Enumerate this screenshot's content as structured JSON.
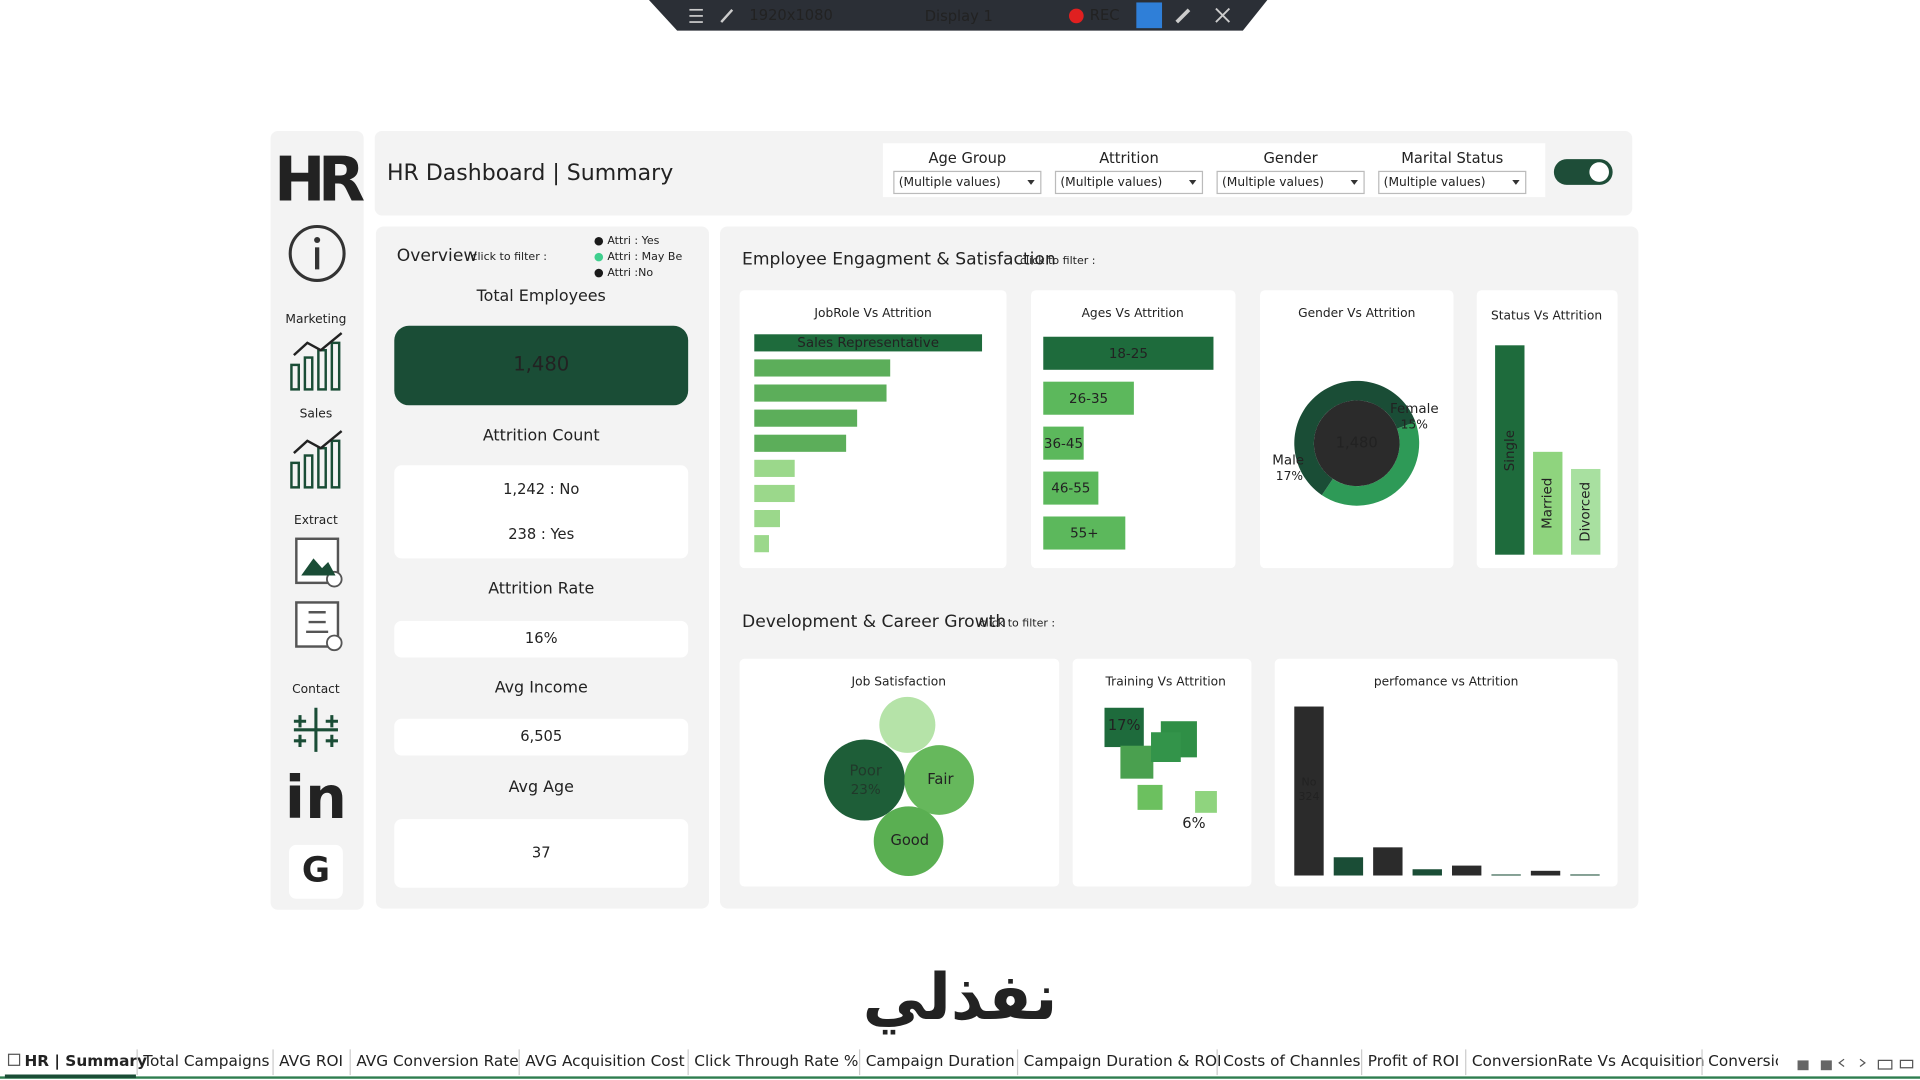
{
  "recorder": {
    "resolution": "1920x1080",
    "display": "Display 1",
    "rec": "REC"
  },
  "sidebar": {
    "logo": "HR",
    "sections": [
      "Marketing",
      "Sales",
      "Extract",
      "Contact"
    ],
    "linkedin": "in",
    "google": "G"
  },
  "header": {
    "title": "HR Dashboard | Summary",
    "filters": [
      {
        "label": "Age Group",
        "value": "(Multiple values)"
      },
      {
        "label": "Attrition",
        "value": "(Multiple values)"
      },
      {
        "label": "Gender",
        "value": "(Multiple values)"
      },
      {
        "label": "Marital Status",
        "value": "(Multiple values)"
      }
    ]
  },
  "overview": {
    "title": "Overview",
    "hint": "click to filter :",
    "legend": [
      {
        "label": "Attri : Yes",
        "color": "#1a1a1a"
      },
      {
        "label": "Attri : May Be",
        "color": "#3fcf8e"
      },
      {
        "label": "Attri :No",
        "color": "#1a1a1a"
      }
    ],
    "total_label": "Total Employees",
    "total": "1,480",
    "count_label": "Attrition Count",
    "count_no": "1,242 : No",
    "count_yes": "238 : Yes",
    "rate_label": "Attrition Rate",
    "rate": "16%",
    "income_label": "Avg Income",
    "income": "6,505",
    "age_label": "Avg Age",
    "age": "37"
  },
  "engagement": {
    "title": "Employee Engagment & Satisfaction",
    "hint": "click to filter :",
    "jobrole": {
      "type": "bar",
      "title": "JobRole Vs Attrition",
      "categories": [
        "Sales Representative",
        null,
        null,
        null,
        null,
        null,
        null,
        null,
        null
      ],
      "values": [
        62,
        37,
        36,
        28,
        25,
        11,
        11,
        7,
        4
      ]
    },
    "ages": {
      "type": "bar",
      "title": "Ages Vs Attrition",
      "categories": [
        "18-25",
        "26-35",
        "36-45",
        "46-55",
        "55+"
      ],
      "values": [
        139,
        74,
        33,
        45,
        67
      ]
    },
    "gender": {
      "type": "donut",
      "title": "Gender Vs Attrition",
      "center": "1,480",
      "categories": [
        "Female",
        "Male"
      ],
      "values": [
        592,
        888
      ],
      "rate_labels": [
        "15%",
        "17%"
      ]
    },
    "status": {
      "type": "bar",
      "title": "Status Vs Attrition",
      "categories": [
        "Single",
        "Married",
        "Divorced"
      ],
      "values": [
        171,
        84,
        70
      ]
    }
  },
  "development": {
    "title": "Development & Career Growth",
    "hint": "click to filter :",
    "satisfaction": {
      "type": "bubble",
      "title": "Job Satisfaction",
      "categories": [
        null,
        "Poor",
        "Fair",
        "Good"
      ],
      "values": [
        11,
        23,
        17,
        17
      ],
      "value_labels": [
        null,
        "23%",
        null,
        null
      ]
    },
    "training": {
      "type": "squares",
      "title": "Training Vs Attrition",
      "values": [
        17,
        15,
        13,
        11,
        8,
        6
      ],
      "value_labels": [
        "17%",
        null,
        null,
        null,
        null,
        "6%"
      ]
    },
    "performance": {
      "type": "bar",
      "title": "perfomance vs Attrition",
      "categories": [
        "No",
        null,
        null,
        null,
        null,
        null,
        null,
        null
      ],
      "values": [
        324,
        35,
        54,
        12,
        19,
        2,
        9,
        2
      ]
    }
  },
  "watermark": "نفذلي",
  "tabs": [
    "HR | Summary",
    "Total Campaigns",
    "AVG ROI",
    "AVG Conversion Rate",
    "AVG Acquisition Cost",
    "Click Through Rate %",
    "Campaign Duration",
    "Campaign Duration & ROI",
    "Costs of Channles",
    "Profit of ROI",
    "ConversionRate Vs Acquisition",
    "Conversic"
  ]
}
